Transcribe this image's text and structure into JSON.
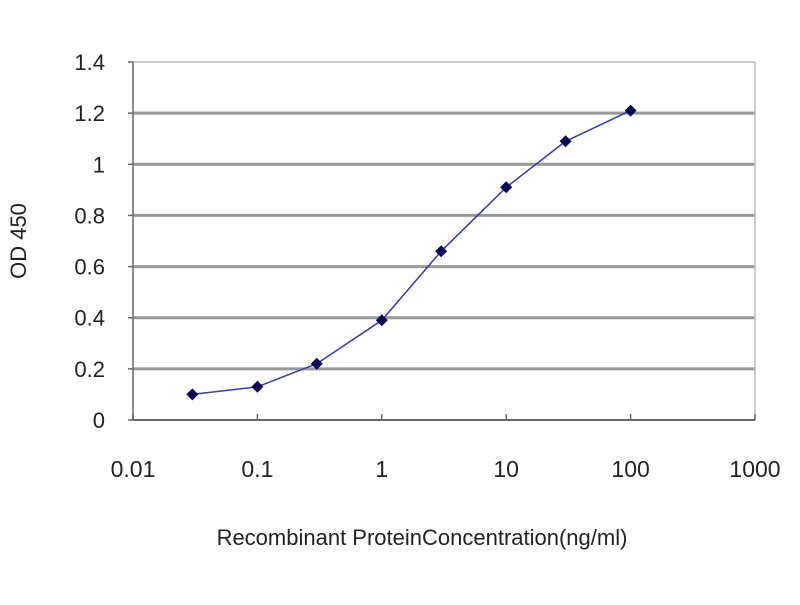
{
  "chart_data": {
    "type": "line",
    "title": "",
    "xlabel": "Recombinant ProteinConcentration(ng/ml)",
    "ylabel": "OD 450",
    "xscale": "log",
    "xlim": [
      0.01,
      1000
    ],
    "ylim": [
      0,
      1.4
    ],
    "xticks": [
      "0.01",
      "0.1",
      "1",
      "10",
      "100",
      "1000"
    ],
    "yticks": [
      "0",
      "0.2",
      "0.4",
      "0.6",
      "0.8",
      "1",
      "1.2",
      "1.4"
    ],
    "grid": "horizontal",
    "legend": "none",
    "series": [
      {
        "x": [
          0.03,
          0.1,
          0.3,
          1,
          3,
          10,
          30,
          100
        ],
        "y": [
          0.1,
          0.13,
          0.22,
          0.39,
          0.66,
          0.91,
          1.09,
          1.21
        ],
        "color": "#3a3a9a",
        "marker_color": "#0a0a50"
      }
    ],
    "gridline_color": "#999999",
    "axis_color": "#666666"
  }
}
